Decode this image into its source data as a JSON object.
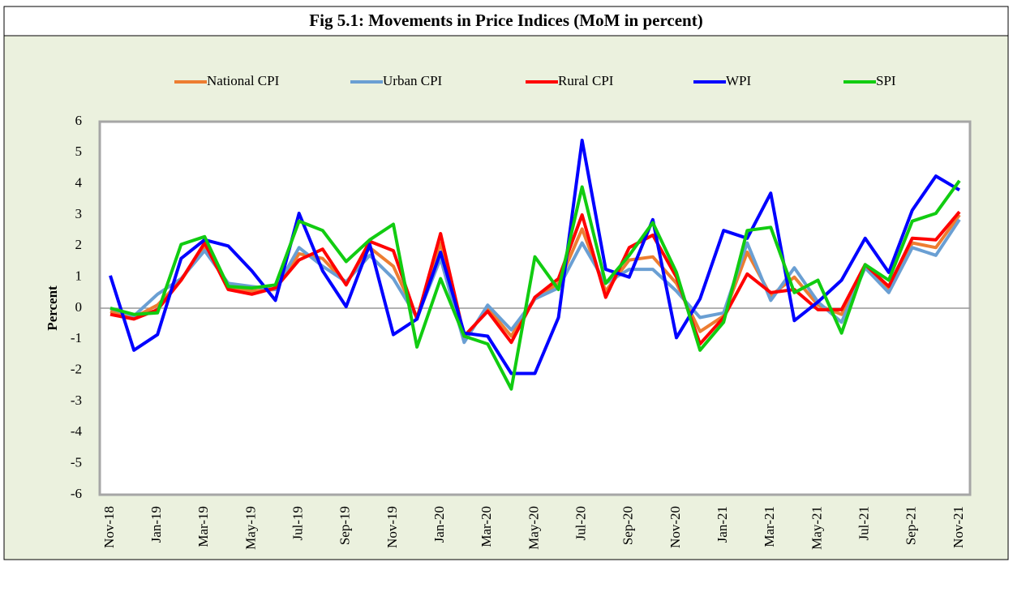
{
  "chart_data": {
    "type": "line",
    "title": "Fig 5.1: Movements in Price Indices (MoM in percent)",
    "y_label": "Percent",
    "categories": [
      "Nov-18",
      null,
      "Jan-19",
      null,
      "Mar-19",
      null,
      "May-19",
      null,
      "Jul-19",
      null,
      "Sep-19",
      null,
      "Nov-19",
      null,
      "Jan-20",
      null,
      "Mar-20",
      null,
      "May-20",
      null,
      "Jul-20",
      null,
      "Sep-20",
      null,
      "Nov-20",
      null,
      "Jan-21",
      null,
      "Mar-21",
      null,
      "May-21",
      null,
      "Jul-21",
      null,
      "Sep-21",
      null,
      "Nov-21"
    ],
    "series": [
      {
        "name": "National CPI",
        "color": "#ed7d31",
        "values": [
          -0.1,
          -0.3,
          0.1,
          0.9,
          2.0,
          0.7,
          0.55,
          0.6,
          1.75,
          1.6,
          0.8,
          1.95,
          1.35,
          -0.3,
          2.1,
          -1.0,
          0.0,
          -0.9,
          0.3,
          0.8,
          2.55,
          0.55,
          1.55,
          1.65,
          0.8,
          -0.75,
          -0.25,
          1.8,
          0.4,
          1.0,
          0.1,
          -0.2,
          1.35,
          0.6,
          2.1,
          1.95,
          3.0
        ]
      },
      {
        "name": "Urban CPI",
        "color": "#6a9fd3",
        "values": [
          0.0,
          -0.25,
          0.45,
          0.95,
          1.85,
          0.8,
          0.7,
          0.6,
          1.95,
          1.35,
          0.85,
          1.7,
          0.95,
          -0.3,
          1.6,
          -1.1,
          0.1,
          -0.7,
          0.3,
          0.65,
          2.1,
          0.8,
          1.25,
          1.25,
          0.55,
          -0.3,
          -0.15,
          2.1,
          0.25,
          1.3,
          0.2,
          -0.45,
          1.3,
          0.5,
          1.95,
          1.7,
          2.85
        ]
      },
      {
        "name": "Rural CPI",
        "color": "#ff0000",
        "values": [
          -0.2,
          -0.35,
          -0.05,
          0.9,
          2.1,
          0.6,
          0.45,
          0.65,
          1.55,
          1.9,
          0.75,
          2.15,
          1.85,
          -0.35,
          2.4,
          -0.9,
          -0.1,
          -1.1,
          0.35,
          0.95,
          3.0,
          0.35,
          1.95,
          2.35,
          1.0,
          -1.15,
          -0.3,
          1.1,
          0.5,
          0.6,
          -0.05,
          -0.05,
          1.4,
          0.7,
          2.25,
          2.2,
          3.1
        ]
      },
      {
        "name": "WPI",
        "color": "#0000ff",
        "values": [
          1.05,
          -1.35,
          -0.85,
          1.6,
          2.2,
          2.0,
          1.2,
          0.25,
          3.05,
          1.2,
          0.05,
          2.05,
          -0.85,
          -0.35,
          1.8,
          -0.8,
          -0.9,
          -2.1,
          -2.1,
          -0.3,
          5.4,
          1.25,
          1.0,
          2.85,
          -0.95,
          0.3,
          2.5,
          2.25,
          3.7,
          -0.4,
          0.2,
          0.9,
          2.25,
          1.15,
          3.15,
          4.25,
          3.8
        ]
      },
      {
        "name": "SPI",
        "color": "#11cc11",
        "values": [
          0.0,
          -0.2,
          -0.15,
          2.05,
          2.3,
          0.7,
          0.65,
          0.75,
          2.8,
          2.5,
          1.5,
          2.2,
          2.7,
          -1.25,
          0.95,
          -0.9,
          -1.15,
          -2.6,
          1.65,
          0.6,
          3.9,
          0.8,
          1.7,
          2.75,
          1.15,
          -1.35,
          -0.45,
          2.5,
          2.6,
          0.5,
          0.9,
          -0.8,
          1.4,
          0.9,
          2.8,
          3.05,
          4.1
        ]
      }
    ],
    "ylim": [
      -6,
      6
    ],
    "yticks": [
      -6,
      -5,
      -4,
      -3,
      -2,
      -1,
      0,
      1,
      2,
      3,
      4,
      5,
      6
    ],
    "legend": "top"
  }
}
